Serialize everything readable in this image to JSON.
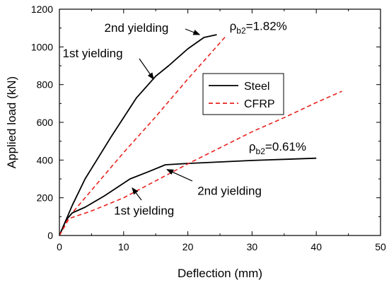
{
  "chart_data": {
    "type": "line",
    "xlabel": "Deflection (mm)",
    "ylabel": "Applied load (kN)",
    "xlim": [
      0,
      50
    ],
    "ylim": [
      0,
      1200
    ],
    "xticks": [
      0,
      10,
      20,
      30,
      40,
      50
    ],
    "yticks": [
      0,
      200,
      400,
      600,
      800,
      1000,
      1200
    ],
    "legend_position": "center-right",
    "legend": [
      {
        "label": "Steel",
        "style": "solid",
        "color": "#000000"
      },
      {
        "label": "CFRP",
        "style": "dashed",
        "color": "#e8231f"
      }
    ],
    "series": [
      {
        "name": "Steel",
        "group": "ρb2=1.82%",
        "style": "solid",
        "color": "#000000",
        "x": [
          0,
          1,
          2,
          4,
          8,
          12,
          15,
          17,
          20,
          22.5,
          24.5
        ],
        "y": [
          0,
          80,
          160,
          300,
          520,
          730,
          845,
          900,
          990,
          1050,
          1065
        ]
      },
      {
        "name": "CFRP",
        "group": "ρb2=1.82%",
        "style": "dashed",
        "color": "#e8231f",
        "x": [
          0,
          1.5,
          5,
          10,
          15,
          20,
          26
        ],
        "y": [
          0,
          100,
          240,
          440,
          630,
          830,
          1060
        ]
      },
      {
        "name": "Steel",
        "group": "ρb2=0.61%",
        "style": "solid",
        "color": "#000000",
        "x": [
          0,
          1,
          2,
          4,
          7,
          11,
          14,
          16.5,
          20,
          25,
          30,
          35,
          40
        ],
        "y": [
          0,
          80,
          120,
          150,
          210,
          300,
          340,
          375,
          382,
          390,
          398,
          404,
          410
        ]
      },
      {
        "name": "CFRP",
        "group": "ρb2=0.61%",
        "style": "dashed",
        "color": "#e8231f",
        "x": [
          0,
          1.5,
          5,
          10,
          15,
          20,
          25,
          30,
          35,
          40,
          44
        ],
        "y": [
          0,
          90,
          130,
          200,
          290,
          380,
          465,
          550,
          625,
          705,
          765
        ]
      }
    ],
    "annotations": {
      "rho_high": {
        "base": "ρ",
        "sub": "b2",
        "rest": "=1.82%",
        "x": 26.5,
        "y": 1090
      },
      "rho_low": {
        "base": "ρ",
        "sub": "b2",
        "rest": "=0.61%",
        "x": 29.5,
        "y": 450
      },
      "yield2_high": {
        "text": "2nd yielding",
        "x": 7,
        "y": 1080,
        "arrow_to": [
          22.5,
          1050
        ]
      },
      "yield1_high": {
        "text": "1st yielding",
        "x": 0.5,
        "y": 945,
        "arrow_to": [
          15,
          840
        ]
      },
      "yield2_low": {
        "text": "2nd yielding",
        "x": 21.5,
        "y": 215,
        "arrow_to": [
          16.3,
          365
        ]
      },
      "yield1_low": {
        "text": "1st yielding",
        "x": 8.5,
        "y": 110,
        "arrow_to": [
          11,
          275
        ]
      }
    }
  }
}
